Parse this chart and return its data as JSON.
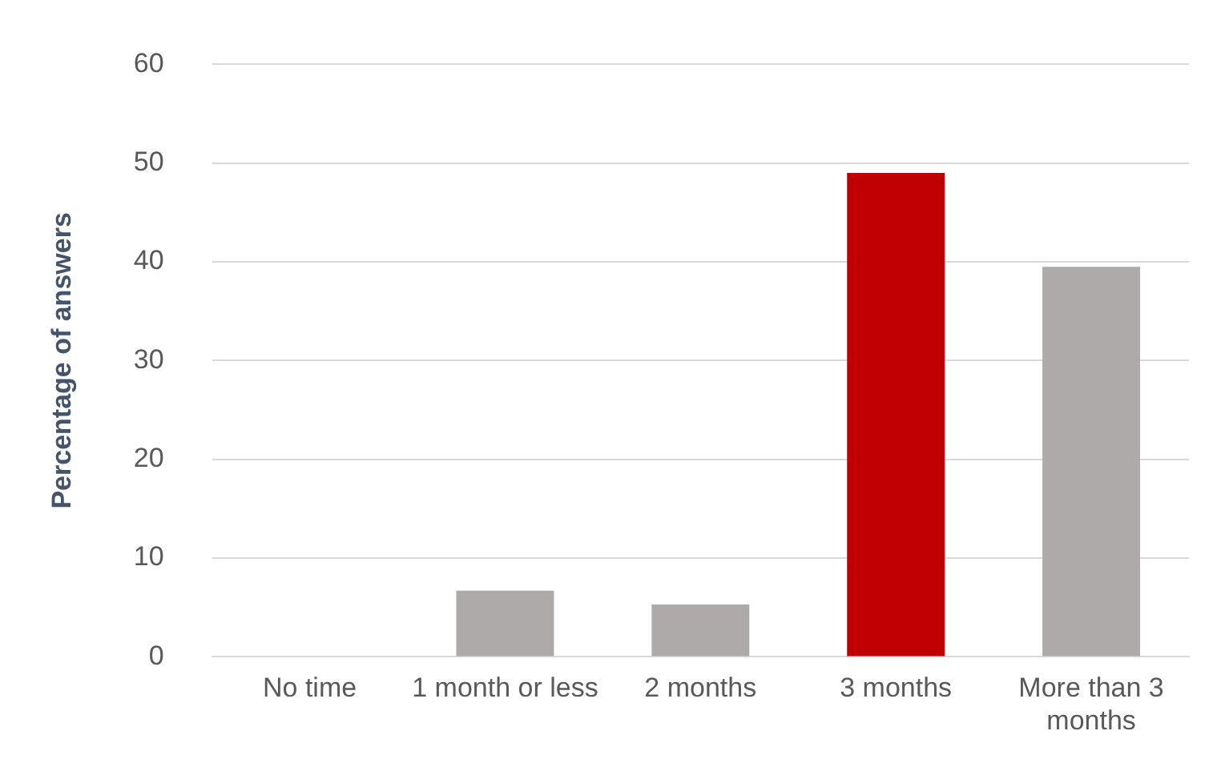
{
  "chart_data": {
    "type": "bar",
    "ylabel": "Percentage of answers",
    "categories": [
      "No time",
      "1 month or less",
      "2 months",
      "3 months",
      "More than 3 months"
    ],
    "values": [
      0,
      6.7,
      5.3,
      49,
      39.5
    ],
    "colors": [
      "#aeaaaa",
      "#aeaaaa",
      "#aeaaaa",
      "#c00000",
      "#aeaaaa"
    ],
    "ylim": [
      0,
      60
    ],
    "yticks": [
      0,
      10,
      20,
      30,
      40,
      50,
      60
    ],
    "grid": "y",
    "legend": false
  }
}
